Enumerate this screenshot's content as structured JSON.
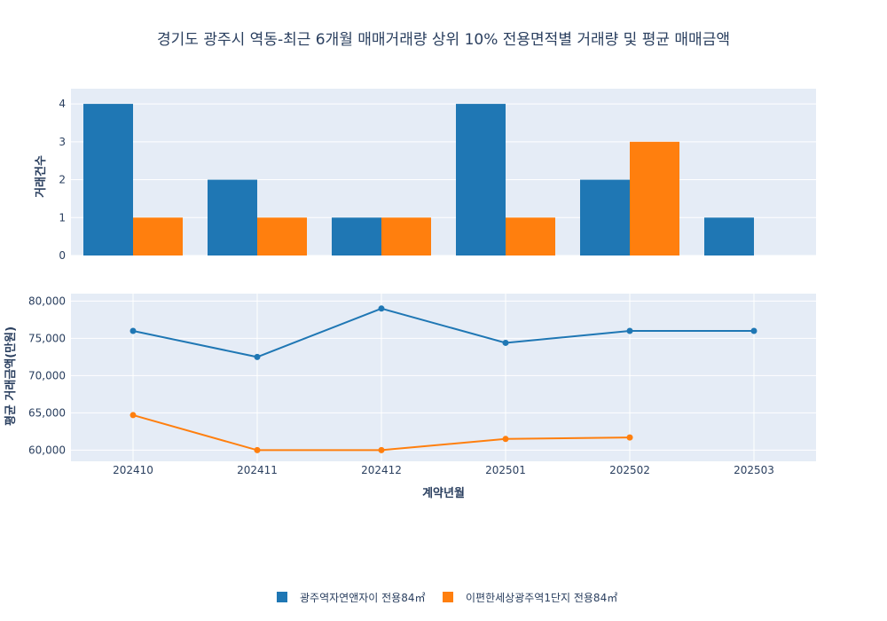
{
  "colors": {
    "series1": "#1f77b4",
    "series2": "#ff7f0e",
    "plot_bg": "#e5ecf6",
    "grid": "#ffffff",
    "text": "#2a3f5f"
  },
  "chart_data": {
    "title": "경기도 광주시 역동-최근 6개월 매매거래량 상위 10% 전용면적별 거래량 및 평균 매매금액",
    "categories": [
      "202410",
      "202411",
      "202412",
      "202501",
      "202502",
      "202503"
    ],
    "xlabel": "계약년월",
    "legend_position": "bottom-center",
    "series_names": [
      "광주역자연앤자이 전용84㎡",
      "이편한세상광주역1단지 전용84㎡"
    ],
    "subplots": [
      {
        "type": "bar",
        "ylabel": "거래건수",
        "ylim": [
          0,
          4.4
        ],
        "yticks": [
          0,
          1,
          2,
          3,
          4
        ],
        "ytick_labels": [
          "0",
          "1",
          "2",
          "3",
          "4"
        ],
        "grid": true,
        "series": [
          {
            "name": "광주역자연앤자이 전용84㎡",
            "values": [
              4,
              2,
              1,
              4,
              2,
              1
            ]
          },
          {
            "name": "이편한세상광주역1단지 전용84㎡",
            "values": [
              1,
              1,
              1,
              1,
              3,
              null
            ]
          }
        ]
      },
      {
        "type": "line",
        "ylabel": "평균 거래금액(만원)",
        "ylim": [
          58500,
          81000
        ],
        "yticks": [
          60000,
          65000,
          70000,
          75000,
          80000
        ],
        "ytick_labels": [
          "60,000",
          "65,000",
          "70,000",
          "75,000",
          "80,000"
        ],
        "grid": true,
        "series": [
          {
            "name": "광주역자연앤자이 전용84㎡",
            "values": [
              76000,
              72500,
              79000,
              74400,
              76000,
              76000
            ]
          },
          {
            "name": "이편한세상광주역1단지 전용84㎡",
            "values": [
              64700,
              60000,
              60000,
              61500,
              61700,
              null
            ]
          }
        ]
      }
    ]
  }
}
